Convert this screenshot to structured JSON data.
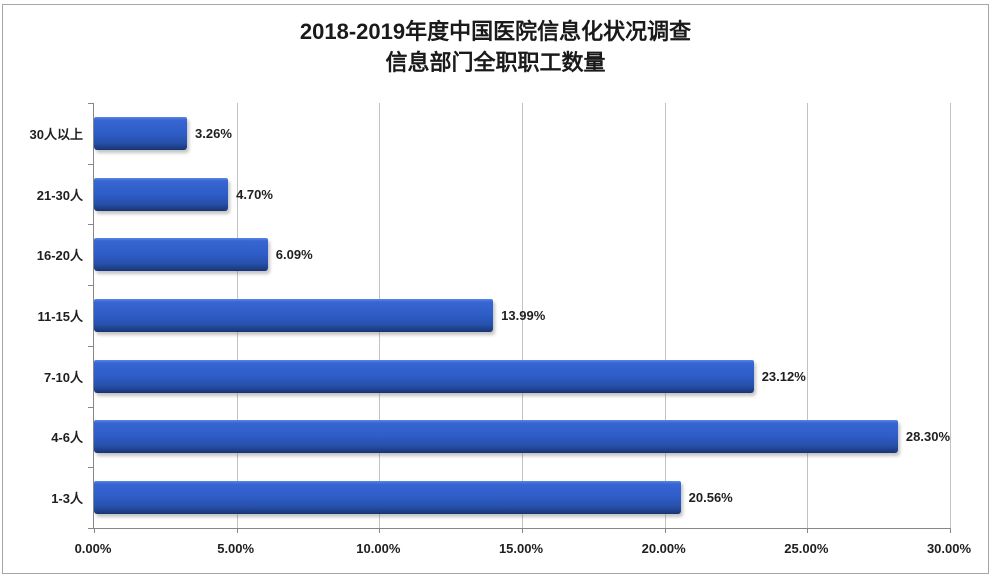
{
  "title": {
    "line1": "2018-2019年度中国医院信息化状况调查",
    "line2": "信息部门全职职工数量"
  },
  "chart_data": {
    "type": "bar",
    "orientation": "horizontal",
    "title": "2018-2019年度中国医院信息化状况调查 信息部门全职职工数量",
    "title_lines": [
      "2018-2019年度中国医院信息化状况调查",
      "信息部门全职职工数量"
    ],
    "categories": [
      "30人以上",
      "21-30人",
      "16-20人",
      "11-15人",
      "7-10人",
      "4-6人",
      "1-3人"
    ],
    "values": [
      3.26,
      4.7,
      6.09,
      13.99,
      23.12,
      28.3,
      20.56
    ],
    "value_labels": [
      "3.26%",
      "4.70%",
      "6.09%",
      "13.99%",
      "23.12%",
      "28.30%",
      "20.56%"
    ],
    "x_tick_values": [
      0,
      5,
      10,
      15,
      20,
      25,
      30
    ],
    "x_tick_labels": [
      "0.00%",
      "5.00%",
      "10.00%",
      "15.00%",
      "20.00%",
      "25.00%",
      "30.00%"
    ],
    "xlim": [
      0,
      30
    ],
    "xlabel": "",
    "ylabel": "",
    "grid": true,
    "legend": false
  },
  "colors": {
    "bar_main": "#2e5dc8",
    "bar_highlight": "#5b86e8",
    "bar_shadow_edge": "#16306a",
    "gridline": "#c2c2c2",
    "axis": "#878787",
    "text": "#1f1f1f",
    "background": "#ffffff",
    "frame_border": "#a6a6a6"
  }
}
